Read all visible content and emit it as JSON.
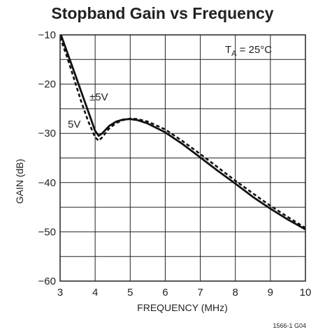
{
  "chart_data": {
    "type": "line",
    "title": "Stopband Gain vs Frequency",
    "xlabel": "FREQUENCY (MHz)",
    "ylabel": "GAIN (dB)",
    "xlim": [
      3,
      10
    ],
    "ylim": [
      -60,
      -10
    ],
    "xticks": [
      3,
      4,
      5,
      6,
      7,
      8,
      9,
      10
    ],
    "yticks": [
      -10,
      -20,
      -30,
      -40,
      -50,
      -60
    ],
    "grid": true,
    "annotations": {
      "condition_main": "T",
      "condition_sub": "A",
      "condition_rest": " = 25°C",
      "label_dual": "±5V",
      "label_single": "5V",
      "figure_id": "1566-1 G04"
    },
    "series": [
      {
        "name": "5V",
        "style": "solid",
        "x": [
          3.0,
          3.2,
          3.4,
          3.6,
          3.8,
          4.0,
          4.1,
          4.2,
          4.4,
          4.6,
          4.8,
          5.0,
          5.2,
          5.5,
          6.0,
          6.5,
          7.0,
          7.5,
          8.0,
          8.5,
          9.0,
          9.5,
          10.0
        ],
        "y": [
          -9.5,
          -13.5,
          -17.5,
          -21.5,
          -25.5,
          -29.5,
          -30.5,
          -30.0,
          -28.5,
          -27.6,
          -27.2,
          -27.1,
          -27.3,
          -28.0,
          -29.8,
          -32.2,
          -34.9,
          -37.6,
          -40.2,
          -42.9,
          -45.3,
          -47.5,
          -49.5
        ]
      },
      {
        "name": "±5V",
        "style": "dashed",
        "x": [
          3.0,
          3.2,
          3.4,
          3.6,
          3.8,
          4.0,
          4.1,
          4.2,
          4.4,
          4.6,
          4.8,
          5.0,
          5.2,
          5.5,
          6.0,
          6.5,
          7.0,
          7.5,
          8.0,
          8.5,
          9.0,
          9.5,
          10.0
        ],
        "y": [
          -10.5,
          -14.5,
          -19.0,
          -23.5,
          -27.5,
          -30.8,
          -31.5,
          -30.8,
          -29.0,
          -27.9,
          -27.3,
          -27.0,
          -27.1,
          -27.6,
          -29.2,
          -31.6,
          -34.2,
          -36.9,
          -39.6,
          -42.2,
          -44.7,
          -47.0,
          -49.2
        ]
      }
    ]
  }
}
